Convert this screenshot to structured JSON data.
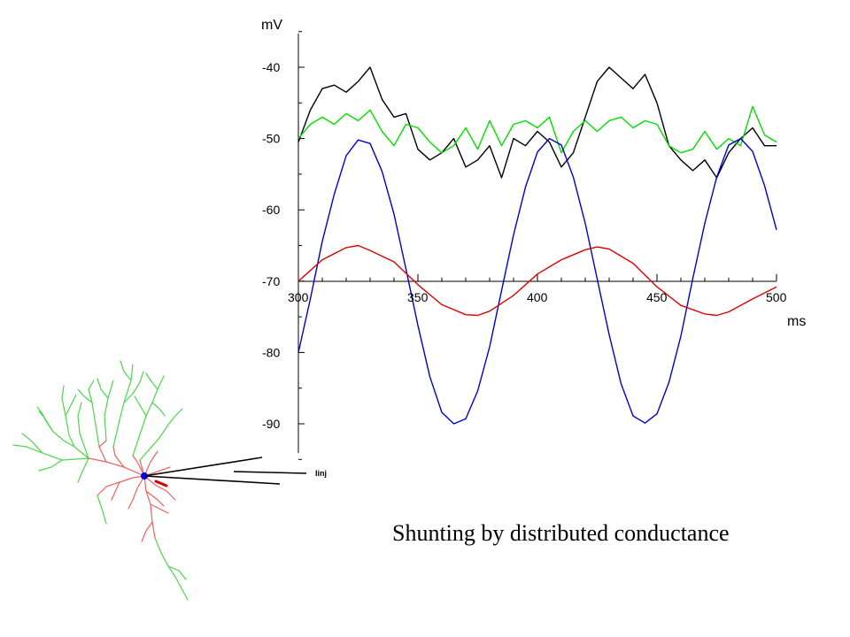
{
  "caption": "Shunting by distributed conductance",
  "electrode_label": "Iinj",
  "chart_data": {
    "type": "line",
    "title": "",
    "xlabel": "ms",
    "ylabel": "mV",
    "xlim": [
      300,
      500
    ],
    "ylim": [
      -95,
      -35
    ],
    "x_ticks": [
      300,
      350,
      400,
      450,
      500
    ],
    "y_ticks": [
      -40,
      -50,
      -60,
      -70,
      -80,
      -90
    ],
    "grid": false,
    "series": [
      {
        "color": "#000000",
        "x": [
          300,
          305,
          310,
          315,
          320,
          325,
          330,
          335,
          340,
          345,
          350,
          355,
          360,
          365,
          370,
          375,
          380,
          385,
          390,
          395,
          400,
          405,
          410,
          415,
          420,
          425,
          430,
          435,
          440,
          445,
          450,
          455,
          460,
          465,
          470,
          475,
          480,
          485,
          490,
          495,
          500
        ],
        "y": [
          -50.5,
          -46,
          -43,
          -42.5,
          -43.5,
          -42,
          -40,
          -44.5,
          -47,
          -46.5,
          -51.5,
          -53,
          -52,
          -50,
          -54,
          -53,
          -51,
          -55.5,
          -50,
          -51,
          -49,
          -50.5,
          -54,
          -52,
          -47,
          -42,
          -40,
          -41.5,
          -43,
          -41,
          -45,
          -51,
          -53,
          -54.5,
          -53,
          -55.5,
          -52,
          -50,
          -48.5,
          -51,
          -51
        ]
      },
      {
        "color": "#00e000",
        "x": [
          300,
          305,
          310,
          315,
          320,
          325,
          330,
          335,
          340,
          345,
          350,
          355,
          360,
          365,
          370,
          375,
          380,
          385,
          390,
          395,
          400,
          405,
          410,
          415,
          420,
          425,
          430,
          435,
          440,
          445,
          450,
          455,
          460,
          465,
          470,
          475,
          480,
          485,
          490,
          495,
          500
        ],
        "y": [
          -50,
          -48,
          -47,
          -48,
          -46.5,
          -47.5,
          -46,
          -49,
          -51,
          -48,
          -48.5,
          -50.5,
          -52,
          -51,
          -48.5,
          -51.5,
          -47.5,
          -51,
          -48,
          -47.5,
          -48.5,
          -47,
          -52,
          -49,
          -47.5,
          -49,
          -47.5,
          -47,
          -48.5,
          -47.5,
          -48,
          -51,
          -52,
          -51.5,
          -49,
          -51.5,
          -50,
          -51,
          -45.5,
          -49.5,
          -50.5
        ]
      },
      {
        "color": "#0000d0",
        "x": [
          300,
          305,
          310,
          315,
          320,
          325,
          330,
          335,
          340,
          345,
          350,
          355,
          360,
          365,
          370,
          375,
          380,
          385,
          390,
          395,
          400,
          405,
          410,
          415,
          420,
          425,
          430,
          435,
          440,
          445,
          450,
          455,
          460,
          465,
          470,
          475,
          480,
          485,
          490,
          495,
          500
        ],
        "y": [
          -80,
          -72.5,
          -64.4,
          -57.8,
          -52.4,
          -50.2,
          -50.7,
          -54.6,
          -60.6,
          -68.3,
          -76.2,
          -83.4,
          -88.4,
          -90,
          -89.3,
          -85.4,
          -79.2,
          -71.3,
          -63.5,
          -56.8,
          -51.9,
          -50,
          -50.9,
          -55.4,
          -61.9,
          -69.7,
          -77.5,
          -84.4,
          -88.9,
          -89.9,
          -88.6,
          -84.2,
          -77.7,
          -69.6,
          -61.9,
          -55.4,
          -50.9,
          -50,
          -51.8,
          -56.6,
          -62.8
        ]
      },
      {
        "color": "#e00000",
        "x": [
          300,
          310,
          320,
          325,
          330,
          340,
          350,
          360,
          370,
          375,
          380,
          390,
          400,
          410,
          420,
          425,
          430,
          440,
          450,
          460,
          470,
          475,
          480,
          490,
          500
        ],
        "y": [
          -70,
          -67,
          -65.3,
          -65,
          -65.7,
          -67.3,
          -70.5,
          -73.3,
          -74.7,
          -74.8,
          -74.2,
          -72,
          -69,
          -67,
          -65.6,
          -65.2,
          -65.5,
          -67.5,
          -70.8,
          -73.4,
          -74.6,
          -74.8,
          -74.3,
          -72.5,
          -70.8
        ]
      }
    ]
  }
}
